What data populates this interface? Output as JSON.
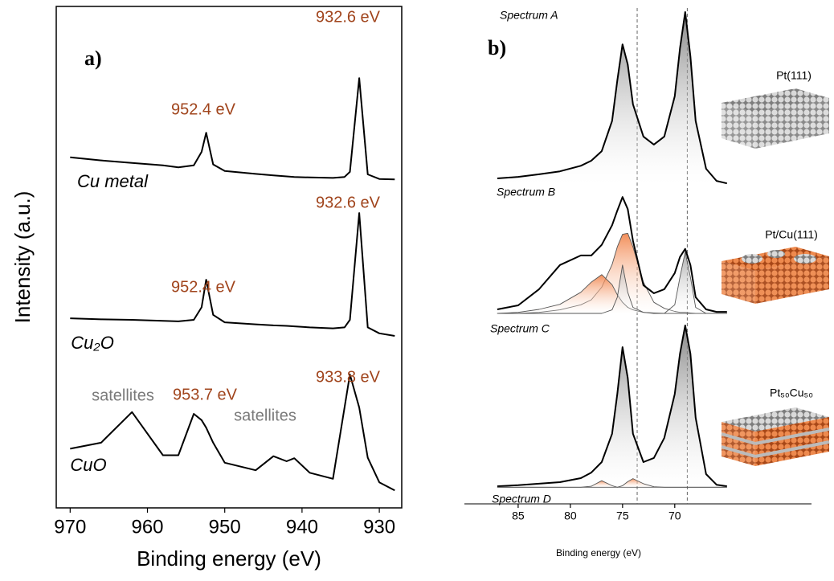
{
  "chart_data": [
    {
      "type": "line",
      "panel_label": "a)",
      "xlabel": "Binding energy (eV)",
      "ylabel": "Intensity (a.u.)",
      "xlim": [
        971.8,
        927.1
      ],
      "xticks": [
        970,
        960,
        950,
        940,
        930
      ],
      "ylim": [
        0,
        100
      ],
      "x": [
        970,
        966,
        962,
        958,
        956,
        954,
        953,
        952.4,
        951.5,
        950,
        946,
        943.7,
        942,
        941,
        939,
        936,
        934.5,
        933.8,
        932.6,
        931.5,
        930,
        928
      ],
      "series": [
        {
          "name": "Cu metal",
          "color": "#000000",
          "values": [
            69.9,
            69.3,
            68.8,
            68.3,
            67.9,
            68.3,
            71,
            74.8,
            68.5,
            67.2,
            66.6,
            66.3,
            66.1,
            66,
            65.9,
            65.8,
            66,
            67,
            85.7,
            66.5,
            65.6,
            65.5
          ]
        },
        {
          "name": "Cu₂O",
          "color": "#000000",
          "values": [
            37.8,
            37.6,
            37.5,
            37.3,
            37.2,
            37.5,
            40,
            45.5,
            38.5,
            37,
            36.6,
            36.4,
            36.3,
            36.2,
            36,
            35.8,
            36,
            37.5,
            58.8,
            36,
            34.8,
            34.3
          ]
        },
        {
          "name": "CuO",
          "color": "#000000",
          "values": [
            11.8,
            13,
            19.1,
            10.5,
            10.5,
            18.75,
            17.5,
            16,
            13,
            9,
            7.5,
            10.3,
            9.3,
            9.9,
            7,
            5.8,
            20,
            26.6,
            20,
            10,
            5.1,
            3.5
          ]
        }
      ],
      "annotations": [
        {
          "text": "932.6 eV",
          "color": "#a0441c"
        },
        {
          "text": "952.4 eV",
          "color": "#a0441c"
        },
        {
          "text": "932.6 eV",
          "color": "#a0441c"
        },
        {
          "text": "952.4 eV",
          "color": "#a0441c"
        },
        {
          "text": "933.8 eV",
          "color": "#a0441c"
        },
        {
          "text": "953.7 eV",
          "color": "#a0441c"
        },
        {
          "text": "satellites",
          "color": "#7a7a7a"
        },
        {
          "text": "satellites",
          "color": "#7a7a7a"
        }
      ]
    },
    {
      "type": "line",
      "panel_label": "b)",
      "xlabel": "Binding energy (eV)",
      "xlim": [
        90.15,
        56.9
      ],
      "xticks": [
        85,
        80,
        75,
        70
      ],
      "ylim": [
        0,
        100
      ],
      "vlines": [
        73.6,
        68.8
      ],
      "x": [
        87,
        85,
        83,
        81,
        79,
        78,
        77,
        76,
        75.5,
        75,
        74.5,
        74,
        73,
        72,
        71,
        70,
        69.5,
        69,
        68.5,
        68,
        67,
        66,
        65
      ],
      "series": [
        {
          "color": "#000000",
          "fill": "#8c8c8c",
          "values": [
            64.6,
            64.9,
            65.4,
            66,
            67.1,
            68.1,
            70,
            76,
            84,
            91.2,
            87.2,
            79.3,
            72.9,
            71.3,
            72.9,
            80.9,
            90.4,
            97.6,
            88.8,
            76,
            66.5,
            64.1,
            63.6
          ]
        },
        {
          "color": "#555555",
          "fill": "#f07a3c",
          "values": [
            37.8,
            37.8,
            38,
            38.5,
            39.5,
            40.5,
            43,
            47.5,
            51,
            53.5,
            53.7,
            51,
            44,
            40,
            38.8,
            38.2,
            38,
            38,
            37.9,
            37.8,
            37.8,
            37.8,
            37.8
          ]
        },
        {
          "color": "#555555",
          "fill": "#f07a3c",
          "values": [
            37.8,
            38,
            38.6,
            39.6,
            42,
            44,
            45.5,
            43.5,
            41.5,
            40,
            39,
            38.5,
            38,
            37.9,
            37.8,
            37.8,
            37.8,
            37.8,
            37.8,
            37.8,
            37.8,
            37.8,
            37.8
          ]
        },
        {
          "color": "#555555",
          "fill": "#9a9a9a",
          "values": [
            37.8,
            37.8,
            37.8,
            37.8,
            37.8,
            37.8,
            37.8,
            38.5,
            41,
            47.4,
            42,
            39,
            38,
            37.8,
            37.8,
            39.5,
            45,
            50,
            45,
            39,
            37.8,
            37.8,
            37.8
          ]
        },
        {
          "color": "#000000",
          "values": [
            38.6,
            39.4,
            42.6,
            47.4,
            49.3,
            49.3,
            51.4,
            55.3,
            58.2,
            60.9,
            58.5,
            52.2,
            43.4,
            41.8,
            42.6,
            45.8,
            49,
            50.6,
            47.4,
            41,
            38.6,
            38.1,
            38.1
          ]
        },
        {
          "color": "#000000",
          "fill": "#8c8c8c",
          "values": [
            3.5,
            3.7,
            4,
            4.3,
            5.1,
            6.2,
            8.3,
            13.9,
            21.8,
            31.1,
            25,
            13.9,
            8.3,
            9.1,
            13.1,
            21.8,
            29.8,
            35.4,
            29.8,
            17.1,
            5.9,
            3.8,
            3.5
          ]
        },
        {
          "color": "#555555",
          "fill": "#f07a3c",
          "values": [
            3.3,
            3.3,
            3.3,
            3.3,
            3.3,
            3.5,
            4.6,
            3.6,
            3.3,
            3.3,
            3.3,
            3.3,
            3.3,
            3.3,
            3.3,
            3.3,
            3.3,
            3.3,
            3.3,
            3.3,
            3.3,
            3.3,
            3.3
          ]
        },
        {
          "color": "#555555",
          "fill": "#f07a3c",
          "values": [
            3.3,
            3.3,
            3.3,
            3.3,
            3.3,
            3.3,
            3.3,
            3.3,
            3.3,
            3.6,
            4.4,
            5,
            4,
            3.4,
            3.3,
            3.3,
            3.3,
            3.3,
            3.3,
            3.3,
            3.3,
            3.3,
            3.3
          ]
        }
      ],
      "spectrum_labels": [
        "Spectrum A",
        "Spectrum B",
        "Spectrum C",
        "Spectrum D"
      ],
      "structures": [
        "Pt(111)",
        "Pt/Cu(111)",
        "Pt₅₀Cu₅₀"
      ]
    }
  ]
}
